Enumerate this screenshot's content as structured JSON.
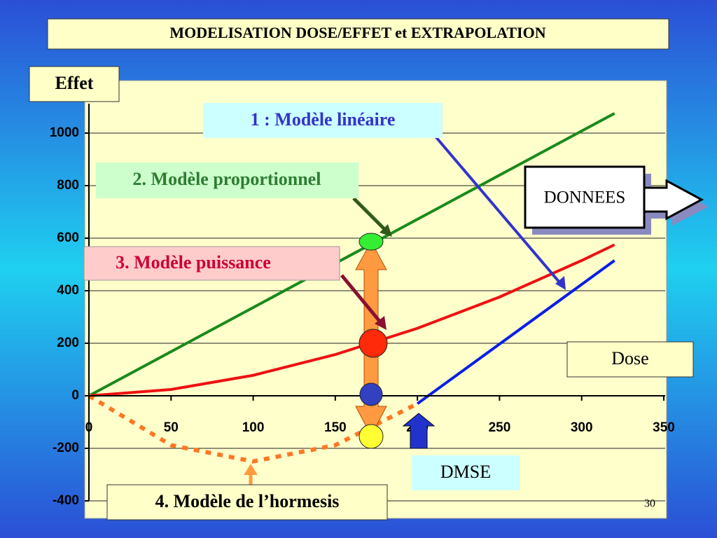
{
  "chart_data": {
    "type": "line",
    "title": "MODELISATION DOSE/EFFET et EXTRAPOLATION",
    "y_label": "Effet",
    "x_label": "Dose",
    "annotations": [
      "DONNEES",
      "DMSE"
    ],
    "x": [
      0,
      50,
      100,
      150,
      200,
      250,
      300,
      320
    ],
    "series": [
      {
        "name": "1 : Modèle linéaire",
        "color": "#0a1ee6",
        "style": "solid",
        "values": [
          null,
          null,
          null,
          null,
          -30,
          197,
          424,
          515
        ]
      },
      {
        "name": "2. Modèle proportionnel",
        "color": "#1a8a1a",
        "style": "solid",
        "values": [
          0,
          168,
          336,
          504,
          672,
          840,
          1008,
          1075
        ]
      },
      {
        "name": "3. Modèle puissance",
        "color": "#ee1111",
        "style": "solid",
        "values": [
          0,
          24,
          78,
          157,
          257,
          376,
          515,
          575
        ]
      },
      {
        "name": "4. Modèle de l’hormesis",
        "color": "#ff7722",
        "style": "dotted",
        "values": [
          0,
          -188,
          -250,
          -188,
          -30,
          null,
          null,
          null
        ]
      }
    ],
    "xlim": [
      0,
      350
    ],
    "xticks": [
      0,
      50,
      100,
      150,
      200,
      250,
      300,
      350
    ],
    "ylim": [
      -400,
      1200
    ],
    "yticks": [
      -400,
      -200,
      0,
      200,
      400,
      600,
      800,
      1000
    ],
    "grid": true
  },
  "page_number": "30"
}
